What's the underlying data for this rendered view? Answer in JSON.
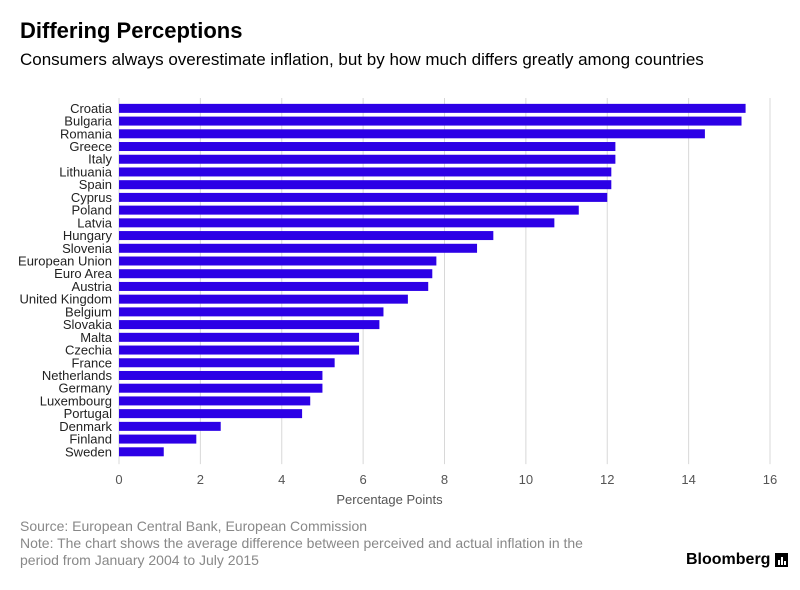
{
  "header": {
    "title": "Differing Perceptions",
    "subtitle": "Consumers always overestimate inflation, but by how much differs greatly among countries"
  },
  "footer": {
    "source": "Source: European Central Bank, European Commission",
    "note_line1": "Note: The chart shows the average difference between perceived and actual inflation in the",
    "note_line2": "period from January 2004 to July 2015",
    "logo": "Bloomberg"
  },
  "colors": {
    "bar": "#2c00e6",
    "grid": "#d8d8d8",
    "text_muted": "#888888"
  },
  "chart_data": {
    "type": "bar",
    "orientation": "horizontal",
    "categories": [
      "Croatia",
      "Bulgaria",
      "Romania",
      "Greece",
      "Italy",
      "Lithuania",
      "Spain",
      "Cyprus",
      "Poland",
      "Latvia",
      "Hungary",
      "Slovenia",
      "European Union",
      "Euro Area",
      "Austria",
      "United Kingdom",
      "Belgium",
      "Slovakia",
      "Malta",
      "Czechia",
      "France",
      "Netherlands",
      "Germany",
      "Luxembourg",
      "Portugal",
      "Denmark",
      "Finland",
      "Sweden"
    ],
    "values": [
      15.4,
      15.3,
      14.4,
      12.2,
      12.2,
      12.1,
      12.1,
      12.0,
      11.3,
      10.7,
      9.2,
      8.8,
      7.8,
      7.7,
      7.6,
      7.1,
      6.5,
      6.4,
      5.9,
      5.9,
      5.3,
      5.0,
      5.0,
      4.7,
      4.5,
      2.5,
      1.9,
      1.1
    ],
    "xlabel": "Percentage Points",
    "ylabel": "",
    "xlim": [
      0,
      16
    ],
    "xticks": [
      0,
      2,
      4,
      6,
      8,
      10,
      12,
      14,
      16
    ],
    "grid": true,
    "legend": "none"
  }
}
